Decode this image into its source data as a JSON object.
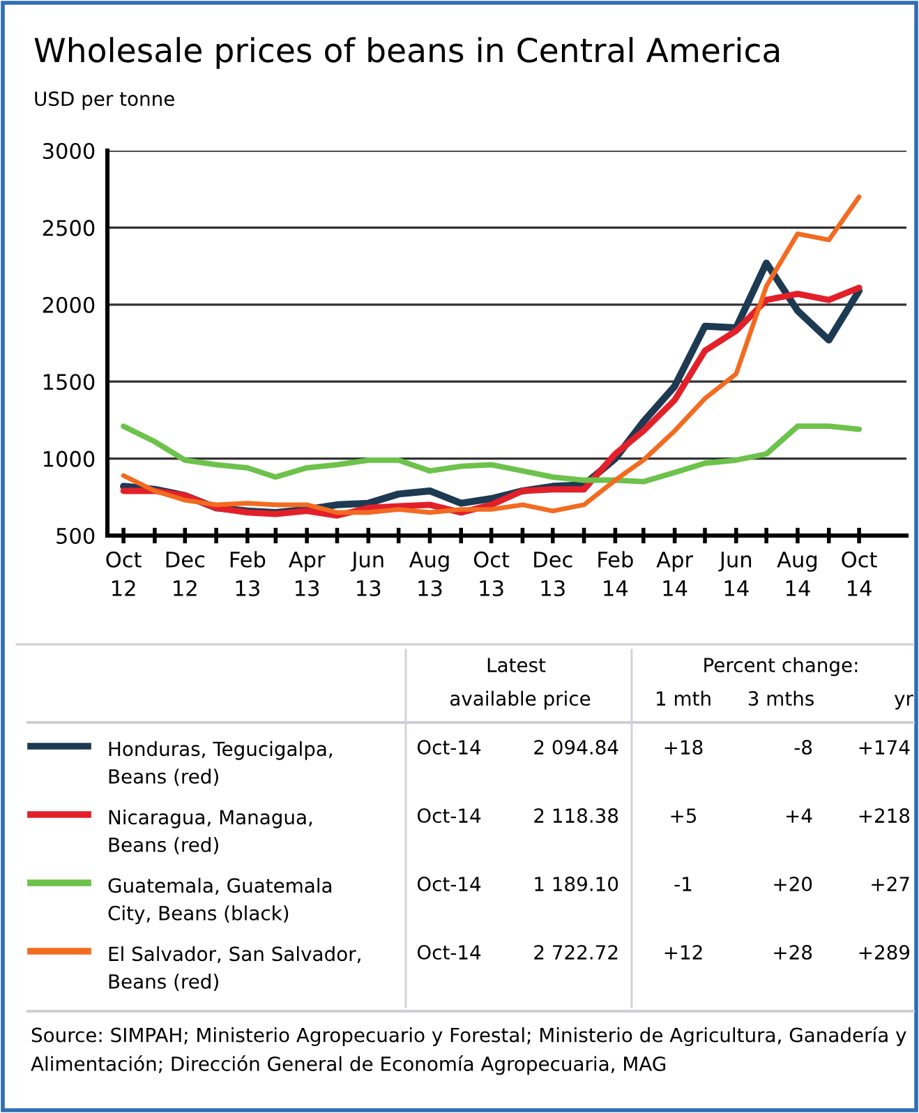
{
  "chart_data": {
    "type": "line",
    "title": "Wholesale prices of beans in Central America",
    "ylabel": "USD per tonne",
    "x": [
      "2012-10",
      "2012-11",
      "2012-12",
      "2013-01",
      "2013-02",
      "2013-03",
      "2013-04",
      "2013-05",
      "2013-06",
      "2013-07",
      "2013-08",
      "2013-09",
      "2013-10",
      "2013-11",
      "2013-12",
      "2014-01",
      "2014-02",
      "2014-03",
      "2014-04",
      "2014-05",
      "2014-06",
      "2014-07",
      "2014-08",
      "2014-09",
      "2014-10"
    ],
    "series": [
      {
        "name": "Honduras, Tegucigalpa,\nBeans (red)",
        "color": "#1d3a52",
        "values": [
          820,
          800,
          760,
          680,
          660,
          650,
          670,
          700,
          710,
          770,
          790,
          710,
          740,
          790,
          820,
          830,
          1000,
          1240,
          1470,
          1860,
          1850,
          2270,
          1960,
          1770,
          2090
        ]
      },
      {
        "name": "Nicaragua, Managua,\nBeans (red)",
        "color": "#e3202a",
        "values": [
          790,
          790,
          760,
          680,
          650,
          640,
          660,
          630,
          680,
          690,
          700,
          650,
          700,
          790,
          800,
          800,
          1030,
          1180,
          1380,
          1700,
          1830,
          2030,
          2070,
          2030,
          2110
        ]
      },
      {
        "name": "Guatemala, Guatemala\nCity, Beans (black)",
        "color": "#6cc24a",
        "values": [
          1210,
          1110,
          990,
          960,
          940,
          880,
          940,
          960,
          990,
          990,
          920,
          950,
          960,
          920,
          880,
          860,
          860,
          850,
          910,
          970,
          990,
          1030,
          1210,
          1210,
          1190
        ]
      },
      {
        "name": "El Salvador, San Salvador,\nBeans (red)",
        "color": "#f26b21",
        "values": [
          890,
          790,
          730,
          700,
          710,
          700,
          700,
          650,
          650,
          670,
          650,
          670,
          670,
          700,
          660,
          700,
          860,
          990,
          1180,
          1390,
          1550,
          2120,
          2460,
          2420,
          2700
        ]
      }
    ],
    "xlim": [
      "2012-09-15",
      "2014-11-17"
    ],
    "xticks": [
      {
        "value": "2012-10",
        "label": "Oct\n12"
      },
      {
        "value": "2012-11",
        "label": null
      },
      {
        "value": "2012-12",
        "label": "Dec\n12"
      },
      {
        "value": "2013-01",
        "label": null
      },
      {
        "value": "2013-02",
        "label": "Feb\n13"
      },
      {
        "value": "2013-03",
        "label": null
      },
      {
        "value": "2013-04",
        "label": "Apr\n13"
      },
      {
        "value": "2013-05",
        "label": null
      },
      {
        "value": "2013-06",
        "label": "Jun\n13"
      },
      {
        "value": "2013-07",
        "label": null
      },
      {
        "value": "2013-08",
        "label": "Aug\n13"
      },
      {
        "value": "2013-09",
        "label": null
      },
      {
        "value": "2013-10",
        "label": "Oct\n13"
      },
      {
        "value": "2013-11",
        "label": null
      },
      {
        "value": "2013-12",
        "label": "Dec\n13"
      },
      {
        "value": "2014-01",
        "label": null
      },
      {
        "value": "2014-02",
        "label": "Feb\n14"
      },
      {
        "value": "2014-03",
        "label": null
      },
      {
        "value": "2014-04",
        "label": "Apr\n14"
      },
      {
        "value": "2014-05",
        "label": null
      },
      {
        "value": "2014-06",
        "label": "Jun\n14"
      },
      {
        "value": "2014-07",
        "label": null
      },
      {
        "value": "2014-08",
        "label": "Aug\n14"
      },
      {
        "value": "2014-09",
        "label": null
      },
      {
        "value": "2014-10",
        "label": "Oct\n14"
      }
    ],
    "ylim": [
      500,
      3000
    ],
    "yticks": [
      500,
      1000,
      1500,
      2000,
      2500,
      3000
    ],
    "grid": "y",
    "legend": "bottom",
    "marker": "none",
    "line_style": "solid",
    "annotations": [
      "Latest",
      "available price",
      "Percent change:",
      "1 mth",
      "3 mths",
      "yr",
      "Oct-14",
      "2 094.84",
      "+18",
      "-8",
      "+174",
      "Oct-14",
      "2 118.38",
      "+5",
      "+4",
      "+218",
      "Oct-14",
      "1 189.10",
      "-1",
      "+20",
      "+27",
      "Oct-14",
      "2 722.72",
      "+12",
      "+28",
      "+289",
      "Source: SIMPAH; Ministerio Agropecuario y Forestal; Ministerio de Agricultura, Ganadería y Alimentación; Dirección General de Economía Agropecuaria, MAG"
    ]
  }
}
